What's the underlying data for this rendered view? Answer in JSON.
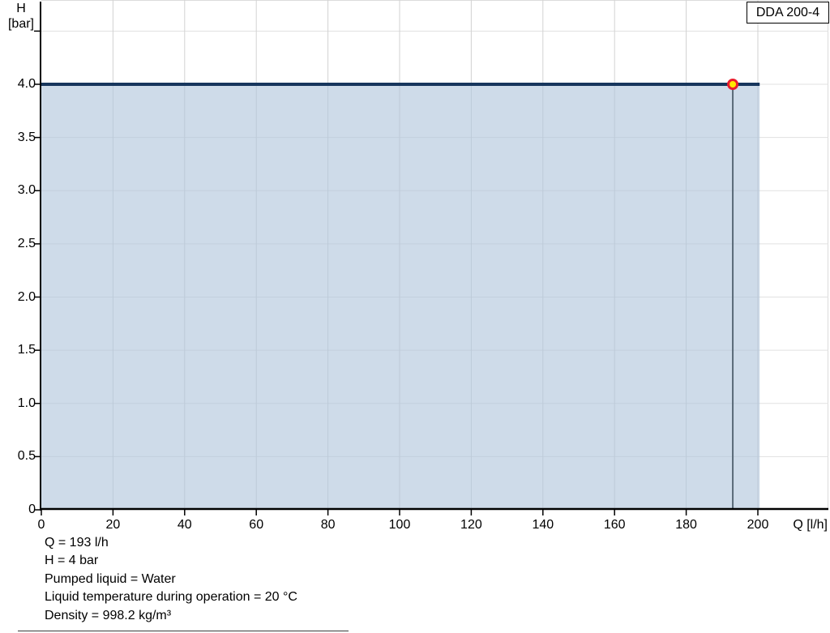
{
  "legend": {
    "label": "DDA 200-4"
  },
  "axes": {
    "y_unit_line1": "H",
    "y_unit_line2": "[bar]",
    "x_unit": "Q [l/h]"
  },
  "footer": {
    "lines": [
      "Q = 193 l/h",
      "H = 4 bar",
      "Pumped liquid = Water",
      "Liquid temperature during operation = 20 °C",
      "Density = 998.2 kg/m³"
    ]
  },
  "chart_data": {
    "type": "area",
    "title": "",
    "xlabel": "Q [l/h]",
    "ylabel": "H [bar]",
    "xlim": [
      0,
      219.7
    ],
    "ylim": [
      0,
      4.79
    ],
    "grid": true,
    "legend_position": "top-right",
    "series": [
      {
        "name": "DDA 200-4",
        "points": [
          [
            0,
            4
          ],
          [
            200.5,
            4
          ]
        ]
      }
    ],
    "operating_point": {
      "q": 193,
      "h": 4
    },
    "x_ticks": [
      {
        "v": 0,
        "label": "0"
      },
      {
        "v": 20,
        "label": "20"
      },
      {
        "v": 40,
        "label": "40"
      },
      {
        "v": 60,
        "label": "60"
      },
      {
        "v": 80,
        "label": "80"
      },
      {
        "v": 100,
        "label": "100"
      },
      {
        "v": 120,
        "label": "120"
      },
      {
        "v": 140,
        "label": "140"
      },
      {
        "v": 160,
        "label": "160"
      },
      {
        "v": 180,
        "label": "180"
      },
      {
        "v": 200,
        "label": "200"
      }
    ],
    "y_ticks": [
      {
        "v": 0,
        "label": "0"
      },
      {
        "v": 0.5,
        "label": "0.5"
      },
      {
        "v": 1,
        "label": "1.0"
      },
      {
        "v": 1.5,
        "label": "1.5"
      },
      {
        "v": 2,
        "label": "2.0"
      },
      {
        "v": 2.5,
        "label": "2.5"
      },
      {
        "v": 3,
        "label": "3.0"
      },
      {
        "v": 3.5,
        "label": "3.5"
      },
      {
        "v": 4,
        "label": "4.0"
      },
      {
        "v": 4.5,
        "label": ""
      }
    ],
    "style": {
      "curve_color": "#17365d",
      "area_fill": "rgba(176,197,220,0.62)",
      "grid_vertical": "#d2d2d2",
      "grid_horizontal": "#e1e1e1",
      "plot_border": "#dcdcdc",
      "axis_color": "#000000",
      "ref_line_color": "#5a6a78",
      "marker_fill": "#ffe800",
      "marker_ring": "#ea1c2d"
    }
  }
}
